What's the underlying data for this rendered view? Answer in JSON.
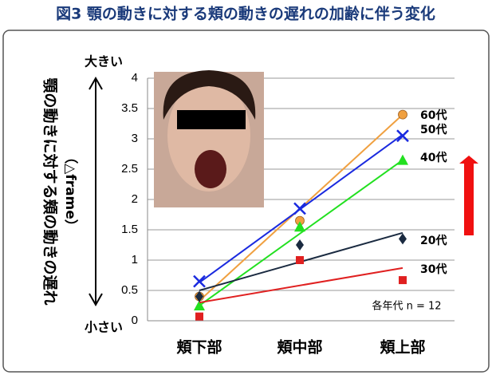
{
  "chart_data": {
    "type": "scatter",
    "title": "図3 顎の動きに対する頬の動きの遅れの加齢に伴う変化",
    "y_label": "顎の動きに対する頬の動きの遅れ",
    "y_label_unit": "（△frame）",
    "annotations": {
      "top": "大きい",
      "bottom": "小さい",
      "note": "各年代 n = 12"
    },
    "categories": [
      "頬下部",
      "頬中部",
      "頬上部"
    ],
    "ylim": [
      0,
      4
    ],
    "yticks": [
      0,
      0.5,
      1,
      1.5,
      2,
      2.5,
      3,
      3.5,
      4
    ],
    "grid": true,
    "series": [
      {
        "name": "60代",
        "color": "#f0a040",
        "marker": "circle",
        "values": [
          0.4,
          1.65,
          3.4
        ],
        "trend": [
          0.33,
          3.4
        ]
      },
      {
        "name": "50代",
        "color": "#1a2adf",
        "marker": "x",
        "values": [
          0.65,
          1.85,
          3.05
        ],
        "trend": [
          0.63,
          3.07
        ]
      },
      {
        "name": "40代",
        "color": "#22e020",
        "marker": "triangle",
        "values": [
          0.25,
          1.55,
          2.65
        ],
        "trend": [
          0.25,
          2.65
        ]
      },
      {
        "name": "20代",
        "color": "#1a2a40",
        "marker": "diamond",
        "values": [
          0.4,
          1.25,
          1.35
        ],
        "trend": [
          0.5,
          1.45
        ]
      },
      {
        "name": "30代",
        "color": "#e02020",
        "marker": "square",
        "values": [
          0.07,
          1.0,
          0.67
        ],
        "trend": [
          0.3,
          0.87
        ]
      }
    ]
  }
}
